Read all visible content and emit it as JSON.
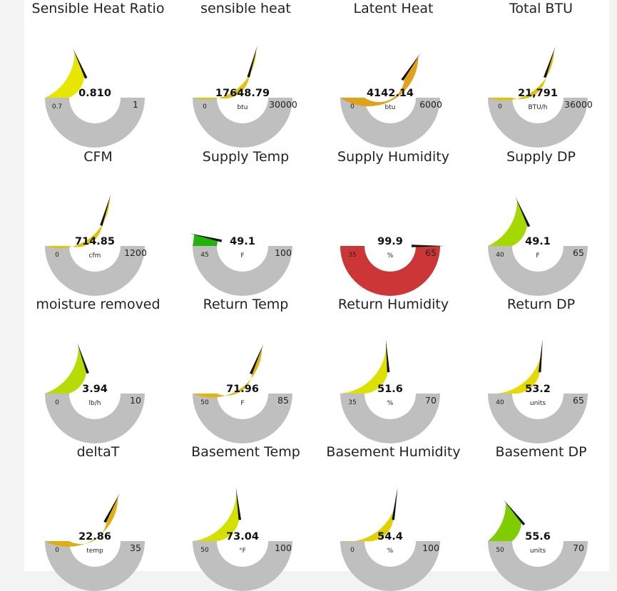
{
  "gauges": [
    {
      "title": "Sensible Heat Ratio",
      "value": 0.81,
      "display": "0.810",
      "unit": "",
      "min": 0.7,
      "max": 1,
      "min_label": "0.7",
      "max_label": "1",
      "color": "#e6e600"
    },
    {
      "title": "sensible heat",
      "value": 17648.79,
      "display": "17648.79",
      "unit": "btu",
      "min": 0,
      "max": 30000,
      "min_label": "0",
      "max_label": "30000",
      "color": "#e0c40c"
    },
    {
      "title": "Latent Heat",
      "value": 4142.14,
      "display": "4142.14",
      "unit": "btu",
      "min": 0,
      "max": 6000,
      "min_label": "0",
      "max_label": "6000",
      "color": "#e0a21a"
    },
    {
      "title": "Total BTU",
      "value": 21791,
      "display": "21,791",
      "unit": "BTU/h",
      "min": 0,
      "max": 36000,
      "min_label": "0",
      "max_label": "36000",
      "color": "#e0c40c"
    },
    {
      "title": "CFM",
      "value": 714.85,
      "display": "714.85",
      "unit": "cfm",
      "min": 0,
      "max": 1200,
      "min_label": "0",
      "max_label": "1200",
      "color": "#e0c40c"
    },
    {
      "title": "Supply Temp",
      "value": 49.1,
      "display": "49.1",
      "unit": "F",
      "min": 45,
      "max": 100,
      "min_label": "45",
      "max_label": "100",
      "color": "#22b30a"
    },
    {
      "title": "Supply Humidity",
      "value": 99.9,
      "display": "99.9",
      "unit": "%",
      "min": 35,
      "max": 65,
      "min_label": "35",
      "max_label": "65",
      "color": "#cc3636"
    },
    {
      "title": "Supply DP",
      "value": 49.1,
      "display": "49.1",
      "unit": "F",
      "min": 40,
      "max": 65,
      "min_label": "40",
      "max_label": "65",
      "color": "#a3d900"
    },
    {
      "title": "moisture removed",
      "value": 3.94,
      "display": "3.94",
      "unit": "lb/h",
      "min": 0,
      "max": 10,
      "min_label": "0",
      "max_label": "10",
      "color": "#b5dd05"
    },
    {
      "title": "Return Temp",
      "value": 71.96,
      "display": "71.96",
      "unit": "F",
      "min": 50,
      "max": 85,
      "min_label": "50",
      "max_label": "85",
      "color": "#deb712"
    },
    {
      "title": "Return Humidity",
      "value": 51.6,
      "display": "51.6",
      "unit": "%",
      "min": 35,
      "max": 70,
      "min_label": "35",
      "max_label": "70",
      "color": "#dde000"
    },
    {
      "title": "Return DP",
      "value": 53.2,
      "display": "53.2",
      "unit": "units",
      "min": 40,
      "max": 65,
      "min_label": "40",
      "max_label": "65",
      "color": "#e6d900"
    },
    {
      "title": "deltaT",
      "value": 22.86,
      "display": "22.86",
      "unit": "temp",
      "min": 0,
      "max": 35,
      "min_label": "0",
      "max_label": "35",
      "color": "#dfae14"
    },
    {
      "title": "Basement Temp",
      "value": 73.04,
      "display": "73.04",
      "unit": "°F",
      "min": 50,
      "max": 100,
      "min_label": "50",
      "max_label": "100",
      "color": "#d4e000"
    },
    {
      "title": "Basement Humidity",
      "value": 54.4,
      "display": "54.4",
      "unit": "%",
      "min": 0,
      "max": 100,
      "min_label": "0",
      "max_label": "100",
      "color": "#e2d000"
    },
    {
      "title": "Basement DP",
      "value": 55.6,
      "display": "55.6",
      "unit": "units",
      "min": 50,
      "max": 70,
      "min_label": "50",
      "max_label": "70",
      "color": "#7fcc00"
    }
  ],
  "colors": {
    "track": "#bfbfbf",
    "needle": "#111111"
  }
}
